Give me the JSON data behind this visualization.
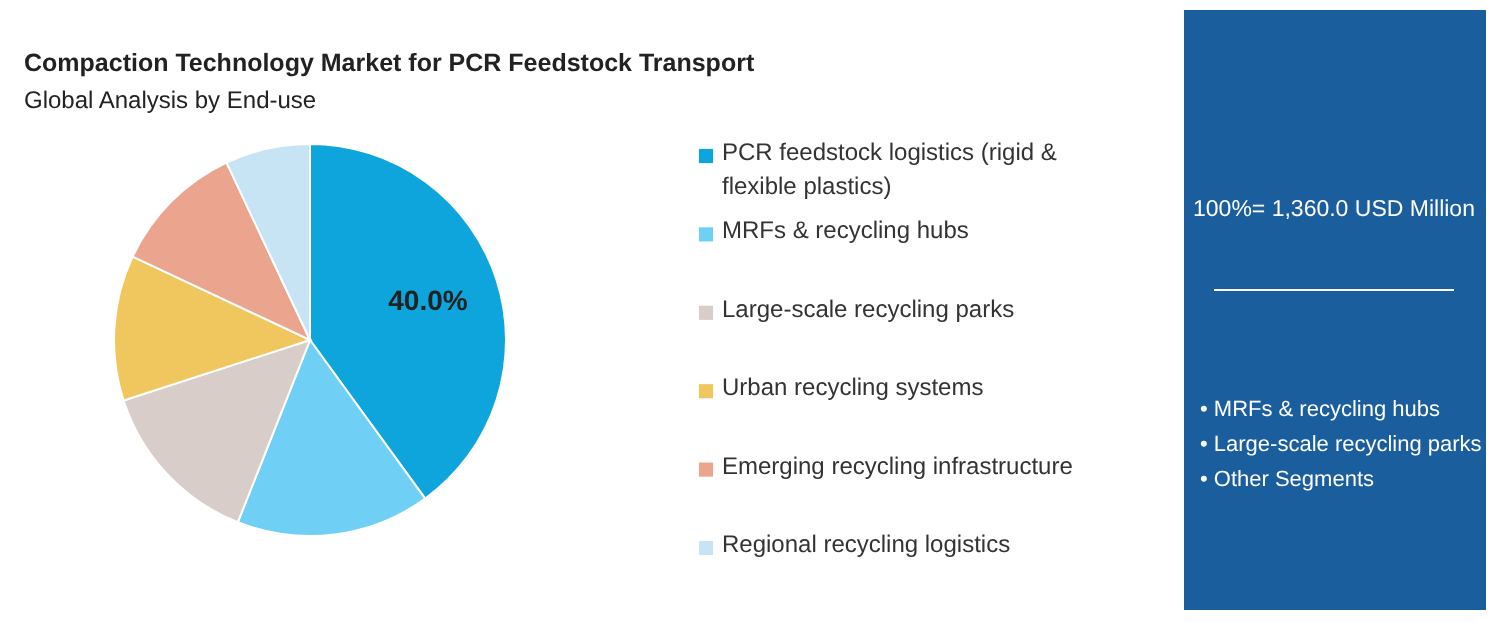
{
  "chart_data": {
    "type": "pie",
    "title": "Compaction Technology Market for PCR Feedstock Transport",
    "subtitle": "Global Analysis by End-use",
    "categories": [
      "PCR feedstock logistics (rigid & flexible plastics)",
      "MRFs & recycling hubs",
      "Large-scale recycling parks",
      "Urban recycling systems",
      "Emerging recycling infrastructure",
      "Regional recycling logistics"
    ],
    "values": [
      40,
      16,
      14,
      12,
      11,
      7
    ],
    "colors": [
      "#0ea5dc",
      "#6fcff5",
      "#d9cdc9",
      "#f0c75e",
      "#eba58f",
      "#c6e4f4"
    ],
    "value_labels": [
      "40.0%",
      null,
      null,
      null,
      null,
      null
    ],
    "legend": "right",
    "annotations": [
      "100%= 1,360.0 USD Million",
      "• MRFs & recycling hubs",
      "• Large-scale recycling parks",
      "• Other Segments"
    ]
  }
}
